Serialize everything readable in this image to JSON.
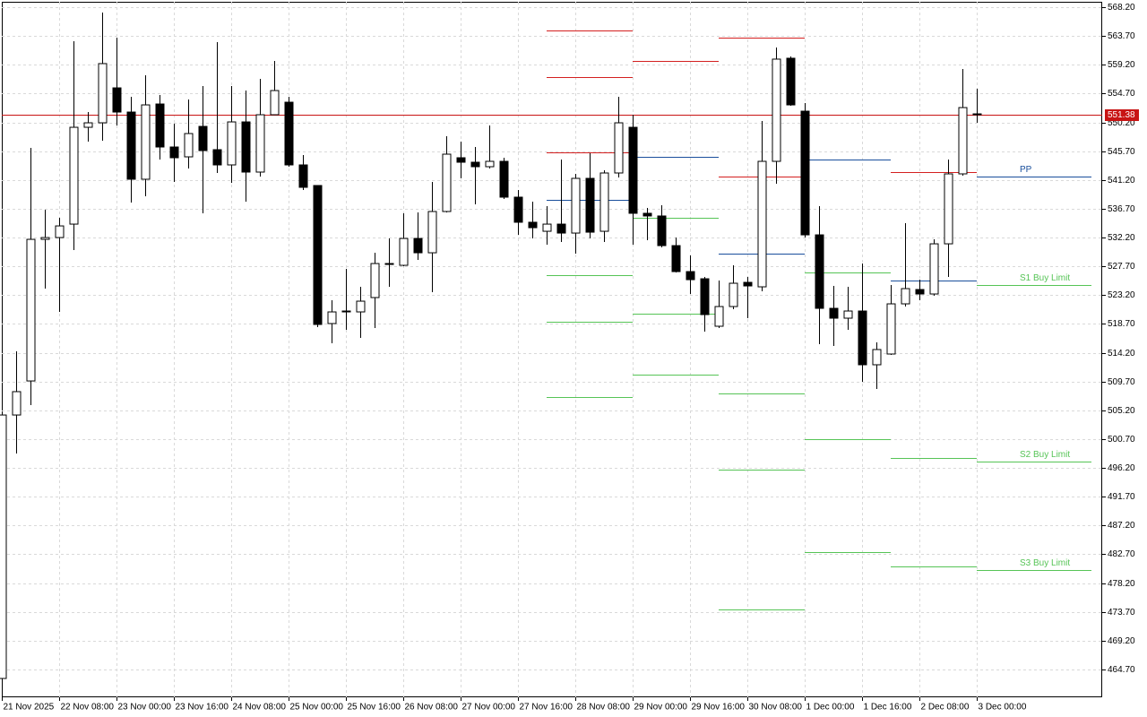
{
  "chart_data": {
    "type": "candlestick",
    "categories": [
      "21 Nov 2025",
      null,
      null,
      null,
      "22 Nov 08:00",
      null,
      null,
      null,
      "23 Nov 00:00",
      null,
      null,
      null,
      "23 Nov 16:00",
      null,
      null,
      null,
      "24 Nov 08:00",
      null,
      null,
      null,
      "25 Nov 00:00",
      null,
      null,
      null,
      "25 Nov 16:00",
      null,
      null,
      null,
      "26 Nov 08:00",
      null,
      null,
      null,
      "27 Nov 00:00",
      null,
      null,
      null,
      "27 Nov 16:00",
      null,
      null,
      null,
      "28 Nov 08:00",
      null,
      null,
      null,
      "29 Nov 00:00",
      null,
      null,
      null,
      "29 Nov 16:00",
      null,
      null,
      null,
      "30 Nov 08:00",
      null,
      null,
      null,
      "1 Dec 00:00",
      null,
      null,
      null,
      "1 Dec 16:00",
      null,
      null,
      null,
      "2 Dec 08:00",
      null,
      null,
      null,
      "3 Dec 00:00"
    ],
    "open": [
      463.3,
      504.47,
      509.79,
      531.92,
      532.2,
      534.3,
      549.43,
      550.13,
      555.59,
      551.81,
      541.31,
      553.07,
      546.35,
      544.81,
      549.57,
      545.93,
      543.55,
      550.27,
      542.43,
      551.39,
      553.35,
      543.55,
      540.33,
      518.76,
      520.58,
      520.58,
      522.82,
      528.0,
      527.86,
      532.06,
      529.82,
      536.27,
      544.67,
      543.97,
      543.27,
      544.11,
      538.51,
      534.59,
      533.18,
      534.3,
      532.9,
      541.45,
      533.18,
      542.29,
      549.43,
      535.99,
      535.57,
      530.94,
      526.88,
      525.76,
      518.34,
      521.42,
      525.2,
      524.5,
      544.11,
      560.22,
      551.95,
      532.62,
      521.14,
      519.6,
      520.72,
      512.32,
      514.0,
      521.84,
      524.08,
      523.38,
      531.22,
      542.15,
      551.53
    ],
    "high": [
      504.47,
      514.42,
      546.21,
      536.55,
      535.29,
      562.88,
      551.81,
      567.36,
      563.44,
      554.19,
      557.55,
      554.47,
      549.99,
      553.77,
      555.87,
      562.74,
      555.87,
      555.17,
      556.99,
      559.8,
      554.19,
      545.09,
      540.33,
      522.4,
      527.3,
      524.5,
      529.82,
      532.06,
      535.99,
      536.13,
      540.89,
      548.03,
      547.19,
      546.35,
      549.71,
      544.67,
      539.63,
      537.81,
      537.11,
      544.39,
      542.15,
      545.37,
      542.71,
      554.19,
      551.39,
      536.83,
      537.25,
      532.2,
      529.4,
      526.04,
      525.48,
      527.86,
      526.04,
      550.41,
      561.9,
      560.5,
      553.21,
      537.11,
      524.64,
      524.5,
      528.14,
      515.82,
      524.78,
      534.45,
      525.62,
      531.92,
      544.39,
      558.54,
      555.45
    ],
    "low": [
      463.3,
      498.45,
      506.01,
      524.22,
      520.58,
      530.24,
      547.19,
      547.33,
      549.71,
      537.67,
      538.65,
      544.39,
      540.89,
      542.99,
      535.99,
      542.29,
      540.75,
      537.81,
      541.73,
      551.39,
      543.27,
      539.63,
      518.2,
      515.68,
      517.78,
      516.52,
      518.06,
      524.5,
      527.72,
      528.7,
      523.66,
      536.13,
      541.45,
      537.39,
      542.99,
      538.23,
      532.62,
      532.06,
      531.08,
      531.5,
      529.68,
      532.06,
      531.5,
      541.59,
      531.08,
      531.78,
      530.66,
      526.74,
      523.38,
      517.5,
      518.06,
      521.0,
      519.6,
      523.8,
      540.61,
      552.79,
      532.2,
      515.54,
      515.26,
      517.78,
      509.65,
      508.53,
      513.86,
      521.42,
      522.4,
      523.1,
      526.04,
      541.87,
      550.13
    ],
    "close": [
      504.47,
      508.12,
      531.92,
      532.2,
      534.02,
      549.43,
      550.13,
      559.38,
      551.81,
      541.31,
      552.93,
      546.35,
      544.67,
      548.45,
      545.79,
      543.55,
      550.27,
      542.43,
      551.39,
      555.17,
      543.55,
      540.05,
      518.62,
      520.58,
      520.72,
      522.26,
      528.14,
      528.14,
      532.06,
      529.82,
      536.27,
      545.23,
      543.97,
      543.27,
      544.11,
      538.51,
      534.59,
      533.74,
      534.3,
      532.9,
      541.45,
      533.04,
      542.29,
      550.13,
      535.99,
      535.57,
      530.94,
      526.88,
      525.62,
      520.16,
      521.42,
      525.06,
      524.64,
      544.11,
      560.08,
      552.93,
      532.62,
      521.14,
      519.6,
      520.72,
      512.32,
      514.7,
      521.84,
      524.22,
      523.38,
      531.22,
      542.15,
      552.51,
      551.39
    ],
    "up_color": "#ffffff",
    "down_color": "#000000",
    "xlim": [
      0,
      76.75
    ],
    "ylim": [
      460.36,
      569.04
    ],
    "yticks": [
      {
        "value": 568.2,
        "label": "568.20"
      },
      {
        "value": 563.7,
        "label": "563.70"
      },
      {
        "value": 559.2,
        "label": "559.20"
      },
      {
        "value": 554.7,
        "label": "554.70"
      },
      {
        "value": 550.2,
        "label": "550.20"
      },
      {
        "value": 545.7,
        "label": "545.70"
      },
      {
        "value": 541.2,
        "label": "541.20"
      },
      {
        "value": 536.7,
        "label": "536.70"
      },
      {
        "value": 532.2,
        "label": "532.20"
      },
      {
        "value": 527.7,
        "label": "527.70"
      },
      {
        "value": 523.2,
        "label": "523.20"
      },
      {
        "value": 518.7,
        "label": "518.70"
      },
      {
        "value": 514.2,
        "label": "514.20"
      },
      {
        "value": 509.7,
        "label": "509.70"
      },
      {
        "value": 505.2,
        "label": "505.20"
      },
      {
        "value": 500.7,
        "label": "500.70"
      },
      {
        "value": 496.2,
        "label": "496.20"
      },
      {
        "value": 491.7,
        "label": "491.70"
      },
      {
        "value": 487.2,
        "label": "487.20"
      },
      {
        "value": 482.7,
        "label": "482.70"
      },
      {
        "value": 478.2,
        "label": "478.20"
      },
      {
        "value": 473.7,
        "label": "473.70"
      },
      {
        "value": 469.2,
        "label": "469.20"
      },
      {
        "value": 464.7,
        "label": "464.70"
      }
    ],
    "grid": true,
    "last_price": 551.38,
    "last_price_color": "#c81414",
    "levels": [
      {
        "x": [
          38,
          44
        ],
        "value": 564.56,
        "color": "#d42020"
      },
      {
        "x": [
          38,
          44
        ],
        "value": 557.27,
        "color": "#d42020"
      },
      {
        "x": [
          38,
          44
        ],
        "value": 545.51,
        "color": "#d42020"
      },
      {
        "x": [
          38,
          44
        ],
        "value": 538.09,
        "color": "#1a4f9c"
      },
      {
        "x": [
          38,
          44
        ],
        "value": 526.32,
        "color": "#56c456"
      },
      {
        "x": [
          38,
          44
        ],
        "value": 519.04,
        "color": "#56c456"
      },
      {
        "x": [
          38,
          44
        ],
        "value": 507.27,
        "color": "#56c456"
      },
      {
        "x": [
          44,
          50
        ],
        "value": 559.8,
        "color": "#d42020"
      },
      {
        "x": [
          44,
          50
        ],
        "value": 544.81,
        "color": "#1a4f9c"
      },
      {
        "x": [
          44,
          50
        ],
        "value": 535.29,
        "color": "#56c456"
      },
      {
        "x": [
          44,
          50
        ],
        "value": 520.3,
        "color": "#56c456"
      },
      {
        "x": [
          44,
          50
        ],
        "value": 510.78,
        "color": "#56c456"
      },
      {
        "x": [
          50,
          56
        ],
        "value": 563.44,
        "color": "#d42020"
      },
      {
        "x": [
          50,
          56
        ],
        "value": 541.73,
        "color": "#d42020"
      },
      {
        "x": [
          50,
          56
        ],
        "value": 529.68,
        "color": "#1a4f9c"
      },
      {
        "x": [
          50,
          56
        ],
        "value": 507.83,
        "color": "#56c456"
      },
      {
        "x": [
          50,
          56
        ],
        "value": 495.93,
        "color": "#56c456"
      },
      {
        "x": [
          50,
          56
        ],
        "value": 474.08,
        "color": "#56c456"
      },
      {
        "x": [
          56,
          62
        ],
        "value": 544.39,
        "color": "#1a4f9c"
      },
      {
        "x": [
          56,
          62
        ],
        "value": 526.74,
        "color": "#56c456"
      },
      {
        "x": [
          56,
          62
        ],
        "value": 500.69,
        "color": "#56c456"
      },
      {
        "x": [
          56,
          62
        ],
        "value": 483.05,
        "color": "#56c456"
      },
      {
        "x": [
          62,
          68
        ],
        "value": 542.43,
        "color": "#d42020"
      },
      {
        "x": [
          62,
          68
        ],
        "value": 525.48,
        "color": "#1a4f9c"
      },
      {
        "x": [
          62,
          68
        ],
        "value": 497.75,
        "color": "#56c456"
      },
      {
        "x": [
          62,
          68
        ],
        "value": 480.8,
        "color": "#56c456"
      },
      {
        "x": [
          68,
          76
        ],
        "value": 541.73,
        "color": "#1a4f9c",
        "label": "PP"
      },
      {
        "x": [
          68,
          76
        ],
        "value": 524.78,
        "color": "#56c456",
        "label": "S1 Buy Limit"
      },
      {
        "x": [
          68,
          76
        ],
        "value": 497.19,
        "color": "#56c456",
        "label": "S2 Buy Limit"
      },
      {
        "x": [
          68,
          76
        ],
        "value": 480.24,
        "color": "#56c456",
        "label": "S3 Buy Limit"
      }
    ]
  }
}
